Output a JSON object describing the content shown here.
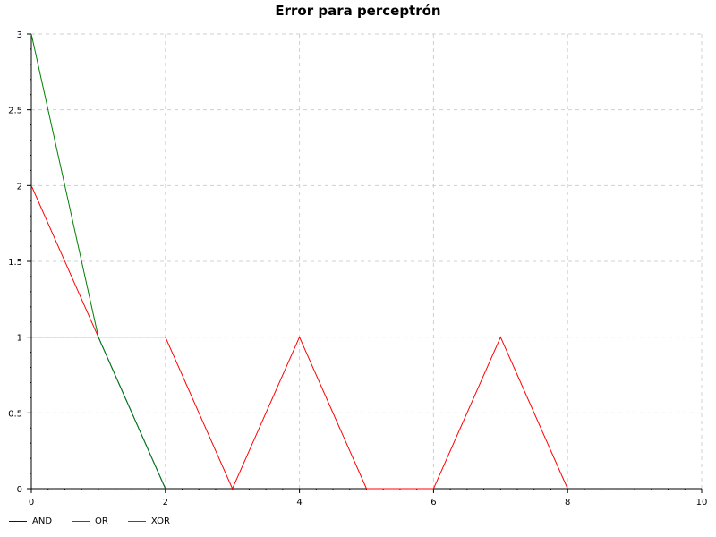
{
  "chart_data": {
    "type": "line",
    "title": "Error para perceptrón",
    "xlabel": "",
    "ylabel": "",
    "xlim": [
      0,
      10
    ],
    "ylim": [
      0,
      3
    ],
    "x_ticks": [
      0,
      2,
      4,
      6,
      8,
      10
    ],
    "y_ticks": [
      0,
      0.5,
      1,
      1.5,
      2,
      2.5,
      3
    ],
    "grid": true,
    "legend_position": "bottom-left",
    "series": [
      {
        "name": "AND",
        "color": "#0000cc",
        "x": [
          0,
          1,
          2
        ],
        "y": [
          1,
          1,
          0
        ]
      },
      {
        "name": "OR",
        "color": "#008000",
        "x": [
          0,
          1,
          2
        ],
        "y": [
          3,
          1,
          0
        ]
      },
      {
        "name": "XOR",
        "color": "#ff0000",
        "x": [
          0,
          1,
          2,
          3,
          4,
          5,
          6,
          7,
          8
        ],
        "y": [
          2,
          1,
          1,
          0,
          1,
          0,
          0,
          1,
          0
        ]
      }
    ]
  }
}
